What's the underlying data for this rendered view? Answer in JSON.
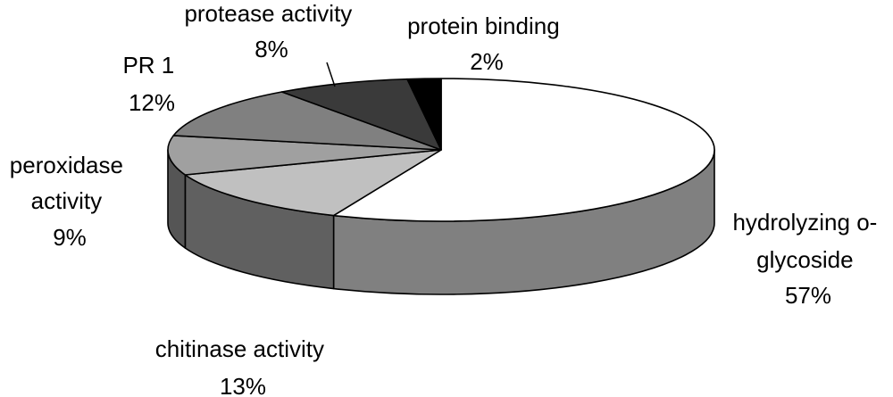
{
  "chart_data": {
    "type": "pie",
    "style": "3d",
    "title": "",
    "slices": [
      {
        "label": "hydrolyzing o-glycoside",
        "label_lines": [
          "hydrolyzing o-",
          "glycoside"
        ],
        "percent_label": "57%",
        "value": 57,
        "color": "#ffffff",
        "side_color": "#808080"
      },
      {
        "label": "chitinase activity",
        "label_lines": [
          "chitinase activity"
        ],
        "percent_label": "13%",
        "value": 13,
        "color": "#c0c0c0",
        "side_color": "#606060"
      },
      {
        "label": "peroxidase activity",
        "label_lines": [
          "peroxidase",
          "activity"
        ],
        "percent_label": "9%",
        "value": 9,
        "color": "#a0a0a0",
        "side_color": "#555555"
      },
      {
        "label": "PR 1",
        "label_lines": [
          "PR 1"
        ],
        "percent_label": "12%",
        "value": 12,
        "color": "#808080",
        "side_color": "#505050"
      },
      {
        "label": "protease activity",
        "label_lines": [
          "protease activity"
        ],
        "percent_label": "8%",
        "value": 8,
        "color": "#3a3a3a",
        "side_color": "#2a2a2a"
      },
      {
        "label": "protein binding",
        "label_lines": [
          "protein binding"
        ],
        "percent_label": "2%",
        "value": 2,
        "color": "#000000",
        "side_color": "#000000"
      }
    ]
  }
}
